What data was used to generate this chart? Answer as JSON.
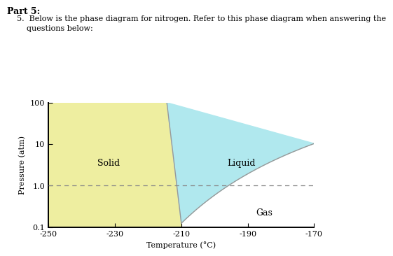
{
  "title_part": "Part 5:",
  "question_text": "5.  Below is the phase diagram for nitrogen. Refer to this phase diagram when answering the\n    questions below:",
  "xlabel": "Temperature (°C)",
  "ylabel": "Pressure (atm)",
  "xmin": -250,
  "xmax": -170,
  "ymin": 0.1,
  "ymax": 100,
  "xticks": [
    -250,
    -230,
    -210,
    -190,
    -170
  ],
  "ytick_vals": [
    0.1,
    1.0,
    10,
    100
  ],
  "ytick_labels": [
    "0.1",
    "1.0",
    "10",
    "100"
  ],
  "dashed_line_y": 1.0,
  "solid_color": "#eeeea0",
  "liquid_color": "#b0e8ee",
  "boundary_color": "#999999",
  "dashed_color": "#888888",
  "label_solid": "Solid",
  "label_liquid": "Liquid",
  "label_gas": "Gas",
  "triple_point_T": -210.0,
  "triple_point_P": 0.124,
  "font_size_labels": 8,
  "font_size_phase": 9,
  "font_size_header": 8,
  "axes_linewidth": 1.4
}
